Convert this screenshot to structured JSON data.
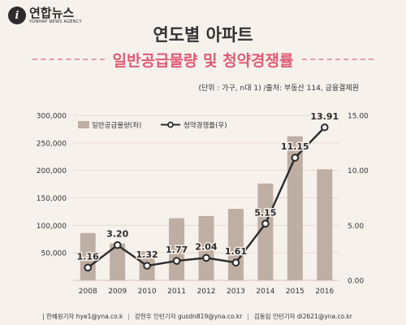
{
  "logo": {
    "name": "연합뉴스",
    "sub": "YONHAP NEWS AGENCY"
  },
  "title": "연도별 아파트",
  "subtitle": "일반공급물량 및 청약경쟁률",
  "source_note": "(단위 : 가구, n대 1)  /출처: 부동산 114, 금융결제원",
  "footer": {
    "credits": [
      "한혜원기자 hye1@yna.co.k",
      "강현우 인턴기자 gusdn819@yna.co.kr",
      "김동임 인턴기자 di2621@yna.co.kr"
    ]
  },
  "chart_data": {
    "type": "bar+line",
    "categories": [
      "2008",
      "2009",
      "2010",
      "2011",
      "2012",
      "2013",
      "2014",
      "2015",
      "2016"
    ],
    "series": [
      {
        "name": "일반공급물량(좌)",
        "type": "bar",
        "axis": "left",
        "color": "#bfaea3",
        "values": [
          86000,
          67000,
          53000,
          113000,
          117000,
          130000,
          176000,
          262000,
          202000
        ]
      },
      {
        "name": "청약경쟁률(우)",
        "type": "line",
        "axis": "right",
        "color": "#2b2b2b",
        "values": [
          1.16,
          3.2,
          1.32,
          1.77,
          2.04,
          1.61,
          5.15,
          11.15,
          13.91
        ],
        "labels": [
          "1.16",
          "3.20",
          "1.32",
          "1.77",
          "2.04",
          "1.61",
          "5.15",
          "11.15",
          "13.91"
        ]
      }
    ],
    "y_left": {
      "min": 0,
      "max": 300000,
      "ticks": [
        "50,000",
        "100,000",
        "150,000",
        "200,000",
        "250,000",
        "300,000"
      ],
      "tick_values": [
        50000,
        100000,
        150000,
        200000,
        250000,
        300000
      ]
    },
    "y_right": {
      "min": 0,
      "max": 15,
      "ticks": [
        "0.00",
        "5.00",
        "10.00",
        "15.00"
      ],
      "tick_values": [
        0,
        5,
        10,
        15
      ]
    },
    "legend_position": "top-left",
    "highlight_color": "#e05a73"
  }
}
